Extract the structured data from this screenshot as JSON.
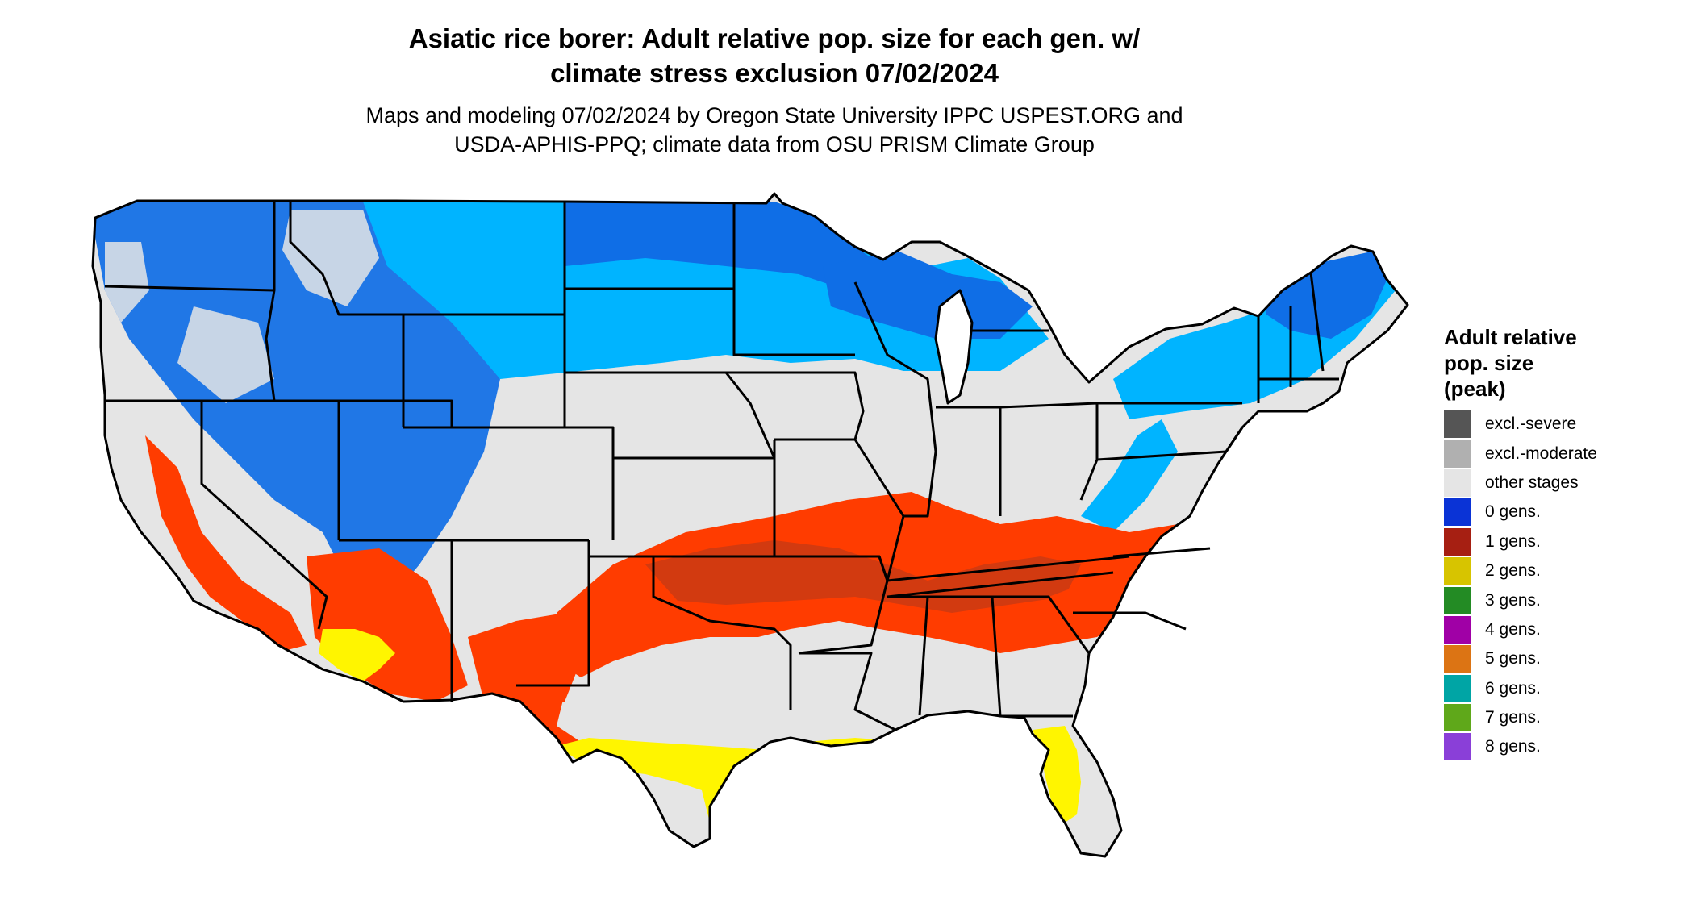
{
  "header": {
    "title_line1": "Asiatic rice borer: Adult relative pop. size for each gen. w/",
    "title_line2": "climate stress exclusion 07/02/2024",
    "subtitle_line1": "Maps and modeling 07/02/2024 by Oregon State University IPPC USPEST.ORG and",
    "subtitle_line2": "USDA-APHIS-PPQ; climate data from OSU PRISM Climate Group"
  },
  "legend": {
    "title_line1": "Adult relative",
    "title_line2": "pop. size",
    "title_line3": "(peak)",
    "items": [
      {
        "label": "excl.-severe",
        "color": "#555555"
      },
      {
        "label": "excl.-moderate",
        "color": "#b0b0b0"
      },
      {
        "label": "other stages",
        "color": "#e5e5e5"
      },
      {
        "label": "0 gens.",
        "color": "#0a33d6"
      },
      {
        "label": "1 gens.",
        "color": "#a61f12"
      },
      {
        "label": "2 gens.",
        "color": "#d7c400"
      },
      {
        "label": "3 gens.",
        "color": "#238b24"
      },
      {
        "label": "4 gens.",
        "color": "#a000a6"
      },
      {
        "label": "5 gens.",
        "color": "#dc7414"
      },
      {
        "label": "6 gens.",
        "color": "#00a5a5"
      },
      {
        "label": "7 gens.",
        "color": "#5fa81a"
      },
      {
        "label": "8 gens.",
        "color": "#8a3fd8"
      }
    ]
  },
  "map_colors": {
    "background": "#e5e5e5",
    "blue_dark": "#0f6ee6",
    "blue_light": "#00b4ff",
    "red": "#ff3c00",
    "red_dark": "#d23a10",
    "yellow": "#fff500",
    "green": "#3cbc3c",
    "border": "#000000"
  }
}
